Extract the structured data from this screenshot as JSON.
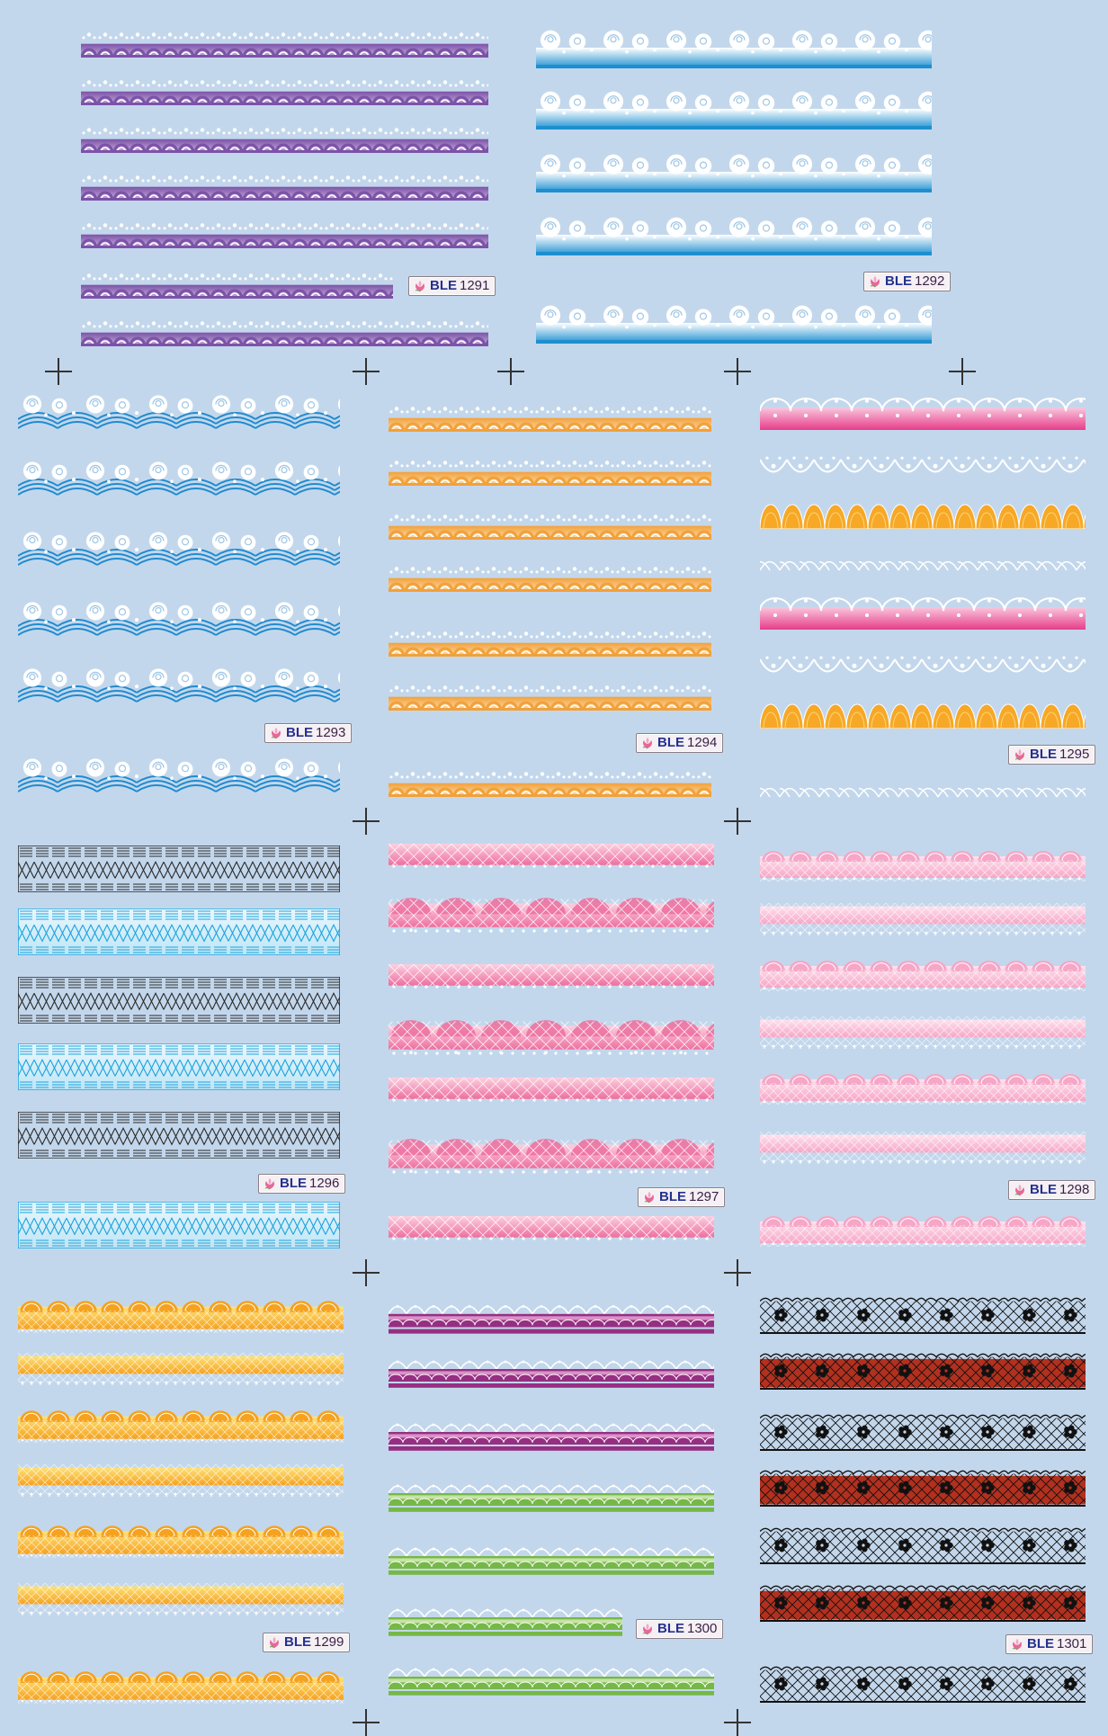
{
  "panels": [
    {
      "prefix": "BLE",
      "number": "1291",
      "style": "arches",
      "colors": {
        "main": "#7c52a8",
        "light": "#c9b7de"
      }
    },
    {
      "prefix": "BLE",
      "number": "1292",
      "style": "roses",
      "colors": {
        "main": "#1d8fd0",
        "light": "#e9f4fb"
      }
    },
    {
      "prefix": "BLE",
      "number": "1293",
      "style": "waves",
      "colors": {
        "main": "#1f8bcf",
        "light": "#ffffff"
      }
    },
    {
      "prefix": "BLE",
      "number": "1294",
      "style": "arches",
      "colors": {
        "main": "#f2a13a",
        "light": "#fbe0b6"
      }
    },
    {
      "prefix": "BLE",
      "number": "1295",
      "style": "mixed",
      "colors": {
        "main": "#e73d8a",
        "light": "#f7a826"
      }
    },
    {
      "prefix": "BLE",
      "number": "1296",
      "style": "grid",
      "colors": {
        "main": "#2a2a2a",
        "light": "#1aa3dd"
      }
    },
    {
      "prefix": "BLE",
      "number": "1297",
      "style": "net",
      "colors": {
        "main": "#ee6f9f",
        "light": "#fbd0e0"
      }
    },
    {
      "prefix": "BLE",
      "number": "1298",
      "style": "scallop",
      "colors": {
        "main": "#f6a6c6",
        "light": "#fde2ee"
      }
    },
    {
      "prefix": "BLE",
      "number": "1299",
      "style": "scallop",
      "colors": {
        "main": "#f5a21f",
        "light": "#fde27a"
      }
    },
    {
      "prefix": "BLE",
      "number": "1300",
      "style": "bands",
      "colors": {
        "main": "#962f82",
        "light": "#76b848"
      }
    },
    {
      "prefix": "BLE",
      "number": "1301",
      "style": "lace",
      "colors": {
        "main": "#111111",
        "light": "#b3301f"
      }
    }
  ]
}
